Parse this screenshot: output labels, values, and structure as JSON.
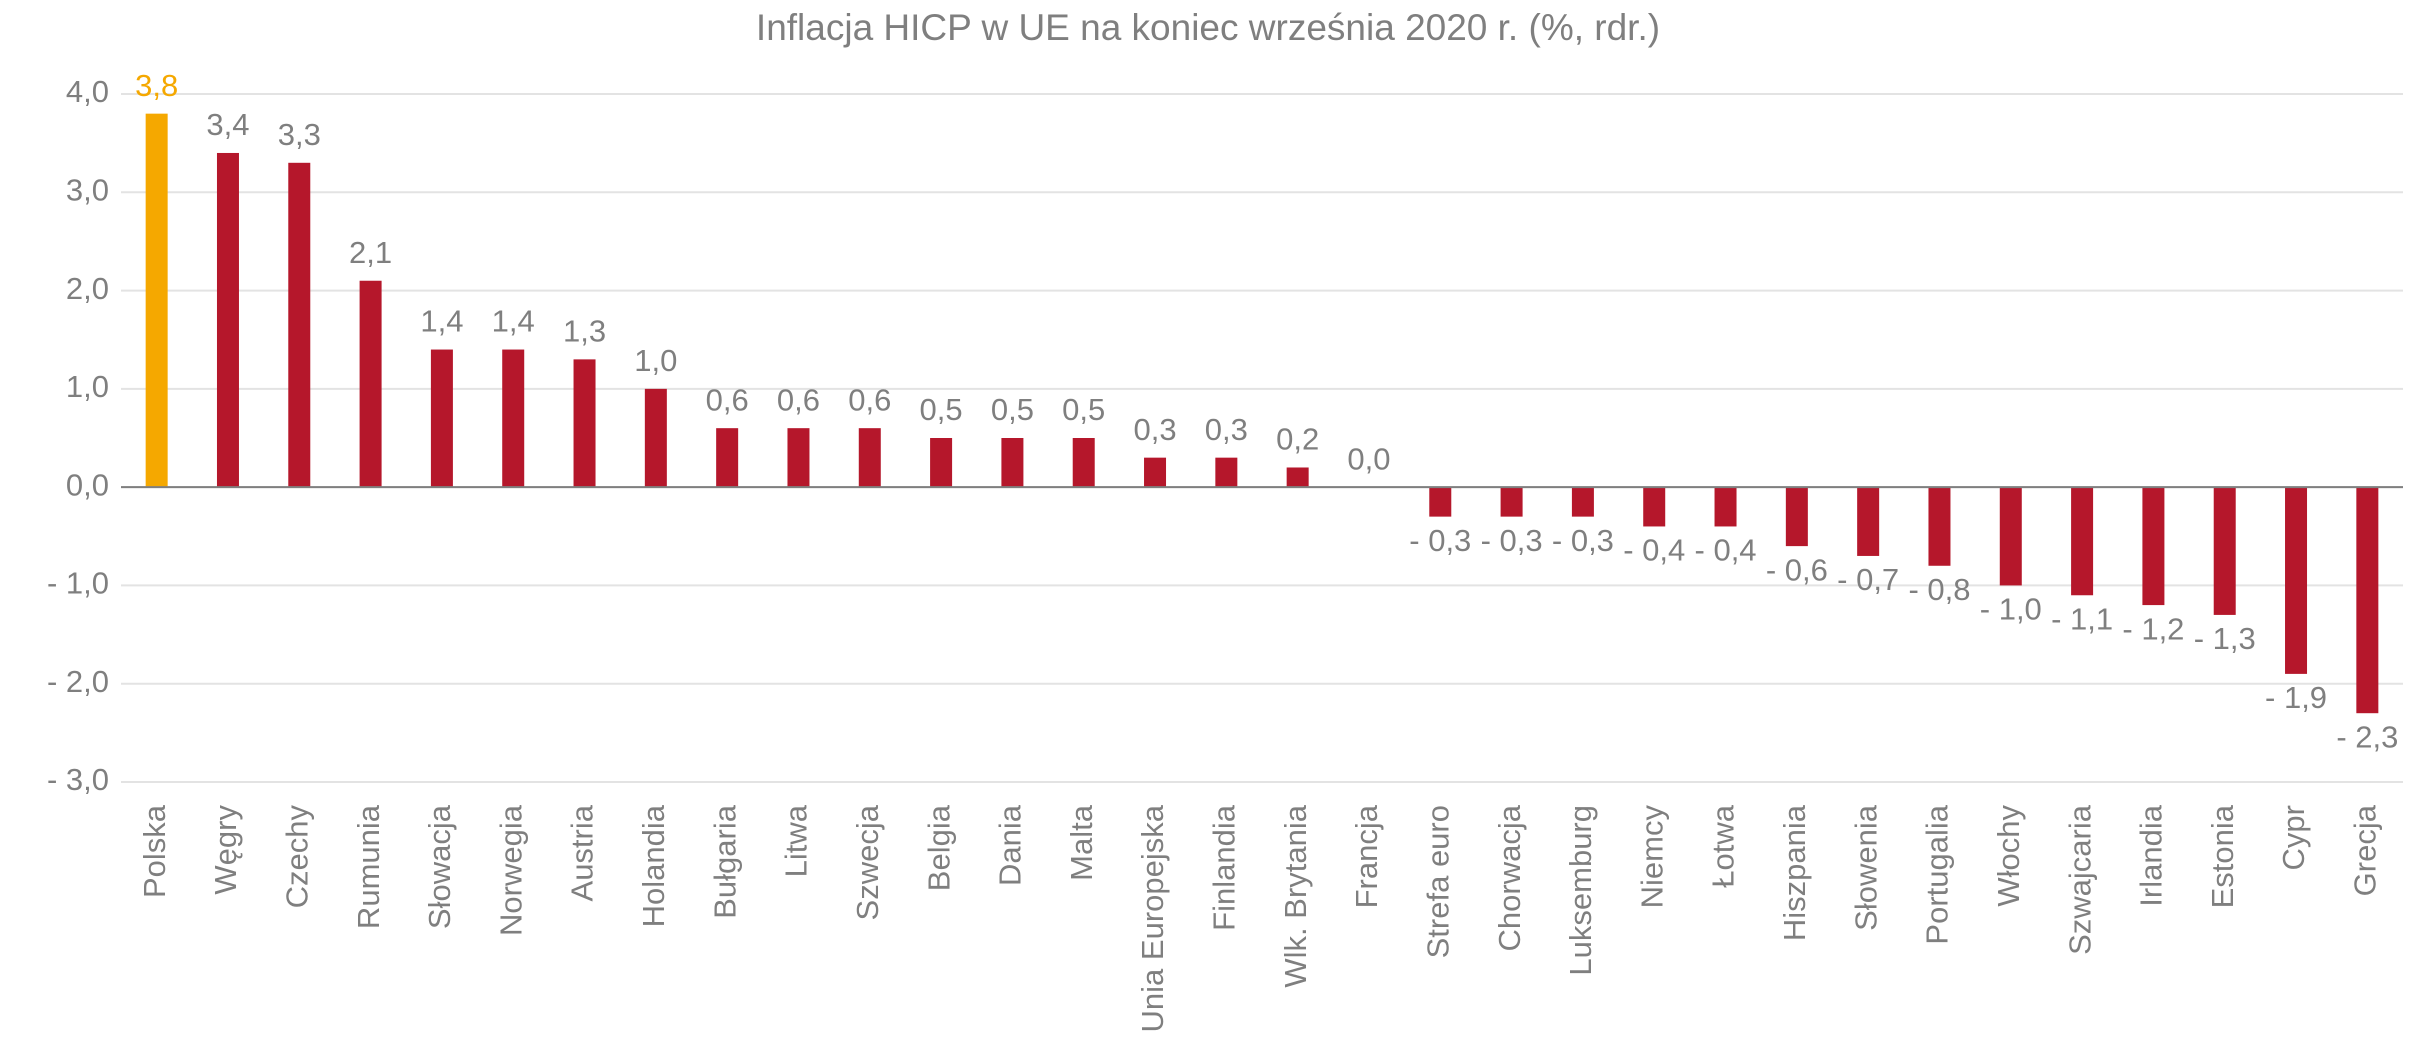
{
  "chart_data": {
    "type": "bar",
    "title": "Inflacja HICP w UE na koniec września 2020 r. (%, rdr.)",
    "categories": [
      "Polska",
      "Węgry",
      "Czechy",
      "Rumunia",
      "Słowacja",
      "Norwegia",
      "Austria",
      "Holandia",
      "Bułgaria",
      "Litwa",
      "Szwecja",
      "Belgia",
      "Dania",
      "Malta",
      "Unia Europejska",
      "Finlandia",
      "Wlk. Brytania",
      "Francja",
      "Strefa euro",
      "Chorwacja",
      "Luksemburg",
      "Niemcy",
      "Łotwa",
      "Hiszpania",
      "Słowenia",
      "Portugalia",
      "Włochy",
      "Szwajcaria",
      "Irlandia",
      "Estonia",
      "Cypr",
      "Grecja"
    ],
    "values": [
      3.8,
      3.4,
      3.3,
      2.1,
      1.4,
      1.4,
      1.3,
      1.0,
      0.6,
      0.6,
      0.6,
      0.5,
      0.5,
      0.5,
      0.3,
      0.3,
      0.2,
      0.0,
      -0.3,
      -0.3,
      -0.3,
      -0.4,
      -0.4,
      -0.6,
      -0.7,
      -0.8,
      -1.0,
      -1.1,
      -1.2,
      -1.3,
      -1.9,
      -2.3
    ],
    "value_labels": [
      "3,8",
      "3,4",
      "3,3",
      "2,1",
      "1,4",
      "1,4",
      "1,3",
      "1,0",
      "0,6",
      "0,6",
      "0,6",
      "0,5",
      "0,5",
      "0,5",
      "0,3",
      "0,3",
      "0,2",
      "0,0",
      "- 0,3",
      "- 0,3",
      "- 0,3",
      "- 0,4",
      "- 0,4",
      "- 0,6",
      "- 0,7",
      "- 0,8",
      "- 1,0",
      "- 1,1",
      "- 1,2",
      "- 1,3",
      "- 1,9",
      "- 2,3"
    ],
    "color": "#b5172b",
    "colors": [
      "#f5a800",
      "#b5172b",
      "#b5172b",
      "#b5172b",
      "#b5172b",
      "#b5172b",
      "#b5172b",
      "#b5172b",
      "#b5172b",
      "#b5172b",
      "#b5172b",
      "#b5172b",
      "#b5172b",
      "#b5172b",
      "#b5172b",
      "#b5172b",
      "#b5172b",
      "#b5172b",
      "#b5172b",
      "#b5172b",
      "#b5172b",
      "#b5172b",
      "#b5172b",
      "#b5172b",
      "#b5172b",
      "#b5172b",
      "#b5172b",
      "#b5172b",
      "#b5172b",
      "#b5172b",
      "#b5172b",
      "#b5172b"
    ],
    "ylim": [
      -3,
      4
    ],
    "yticks": [
      {
        "value": -3,
        "label": "- 3,0"
      },
      {
        "value": -2,
        "label": "- 2,0"
      },
      {
        "value": -1,
        "label": "- 1,0"
      },
      {
        "value": 0,
        "label": "0,0"
      },
      {
        "value": 1,
        "label": "1,0"
      },
      {
        "value": 2,
        "label": "2,0"
      },
      {
        "value": 3,
        "label": "3,0"
      },
      {
        "value": 4,
        "label": "4,0"
      }
    ],
    "grid": true
  }
}
